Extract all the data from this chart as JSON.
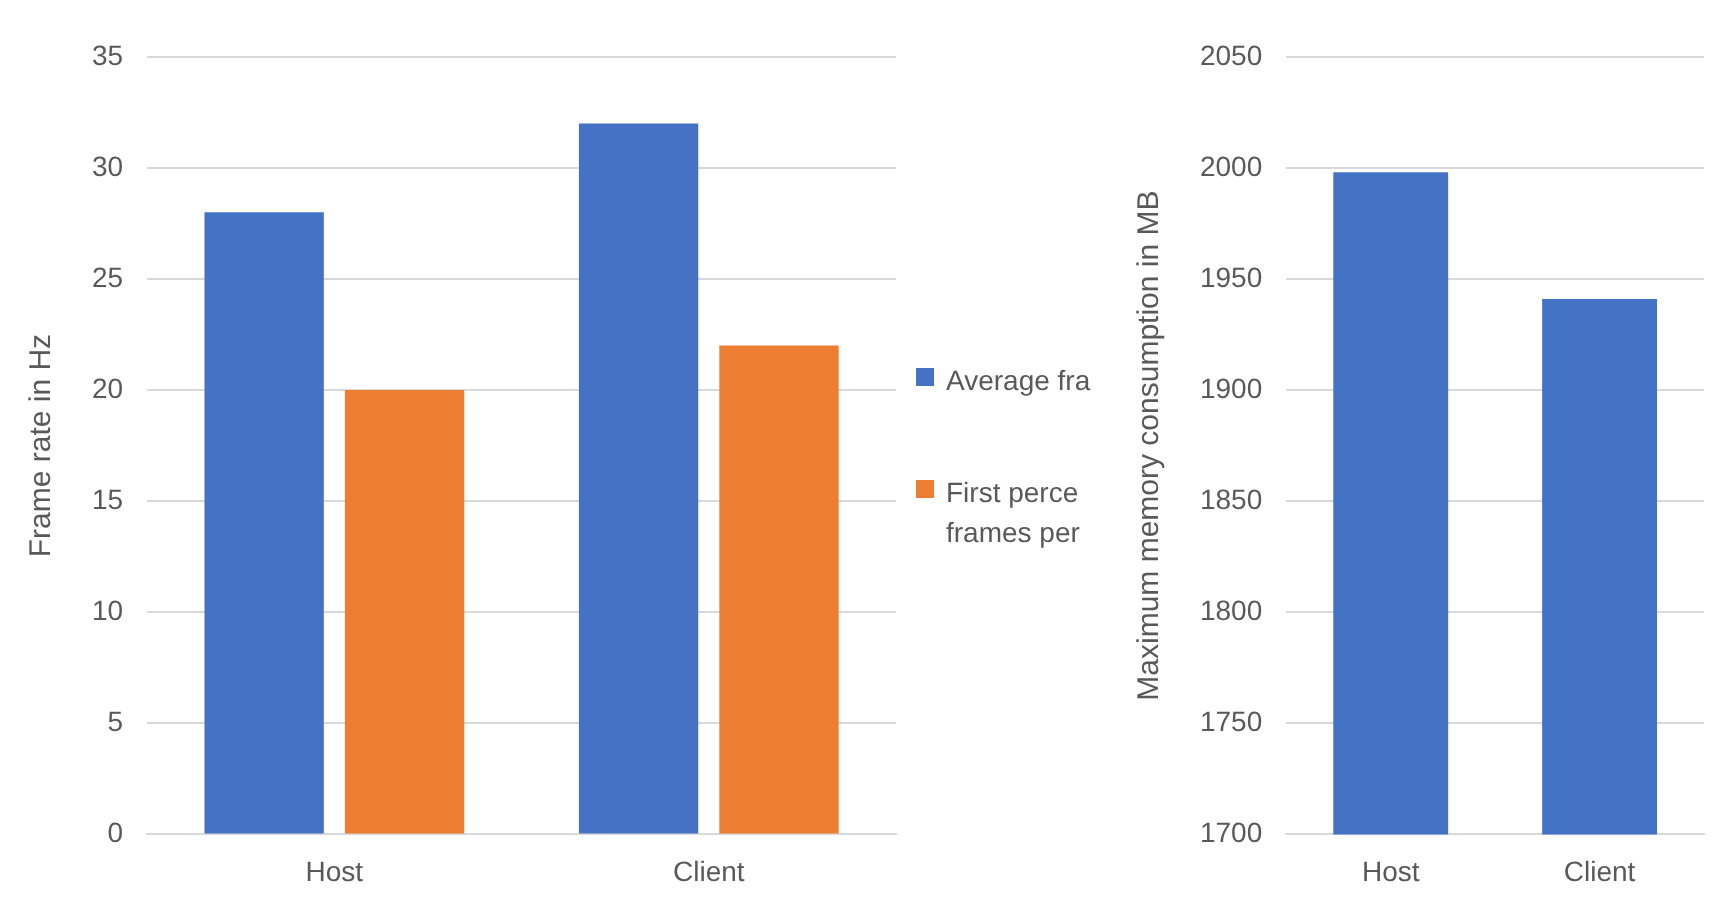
{
  "chart_data": [
    {
      "type": "bar",
      "ylabel": "Frame rate in Hz",
      "categories": [
        "Host",
        "Client"
      ],
      "series": [
        {
          "name": "Average fra",
          "color": "#4472c4",
          "values": [
            28,
            32
          ]
        },
        {
          "name": "First perce frames per",
          "color": "#ed7d31",
          "values": [
            20,
            22
          ]
        }
      ],
      "ylim": [
        0,
        35
      ],
      "yticks": [
        0,
        5,
        10,
        15,
        20,
        25,
        30,
        35
      ],
      "grid": "y",
      "legend": "right"
    },
    {
      "type": "bar",
      "ylabel": "Maximum memory consumption in MB",
      "categories": [
        "Host",
        "Client"
      ],
      "series": [
        {
          "color": "#4472c4",
          "values": [
            1998,
            1941
          ]
        }
      ],
      "ylim": [
        1700,
        2050
      ],
      "yticks": [
        1700,
        1750,
        1800,
        1850,
        1900,
        1950,
        2000,
        2050
      ],
      "grid": "y"
    }
  ]
}
